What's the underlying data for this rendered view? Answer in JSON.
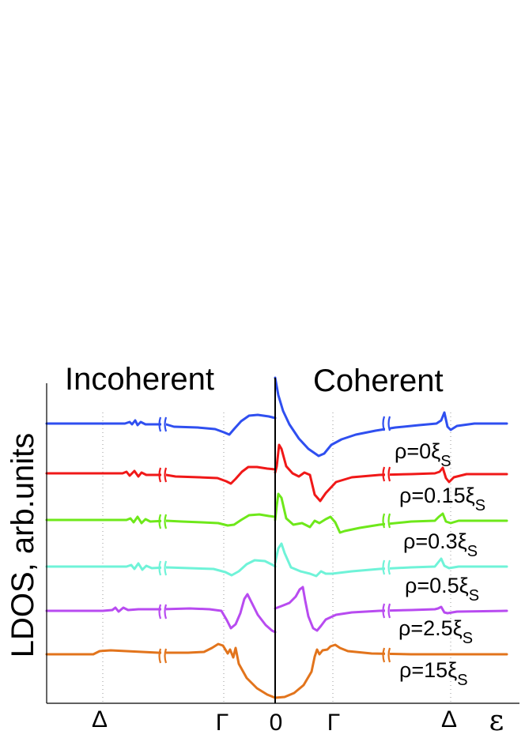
{
  "chart_data": {
    "type": "line",
    "ylabel": "LDOS, arb.units",
    "xlabel": "ε",
    "panels": [
      {
        "id": "left",
        "title": "Incoherent"
      },
      {
        "id": "right",
        "title": "Coherent"
      }
    ],
    "x_ticks": [
      "Δ",
      "Γ",
      "0",
      "Γ",
      "Δ"
    ],
    "axis_break": true,
    "series": [
      {
        "name": "ρ=0ξ",
        "label_main": "ρ=0ξ",
        "label_sub": "S",
        "color": "#2f4ff0"
      },
      {
        "name": "ρ=0.15ξ",
        "label_main": "ρ=0.15ξ",
        "label_sub": "S",
        "color": "#f01818"
      },
      {
        "name": "ρ=0.3ξ",
        "label_main": "ρ=0.3ξ",
        "label_sub": "S",
        "color": "#6ee81a"
      },
      {
        "name": "ρ=0.5ξ",
        "label_main": "ρ=0.5ξ",
        "label_sub": "S",
        "color": "#6ff3d8"
      },
      {
        "name": "ρ=2.5ξ",
        "label_main": "ρ=2.5ξ",
        "label_sub": "S",
        "color": "#b84bf0"
      },
      {
        "name": "ρ=15ξ",
        "label_main": "ρ=15ξ",
        "label_sub": "S",
        "color": "#e2741c"
      }
    ]
  }
}
